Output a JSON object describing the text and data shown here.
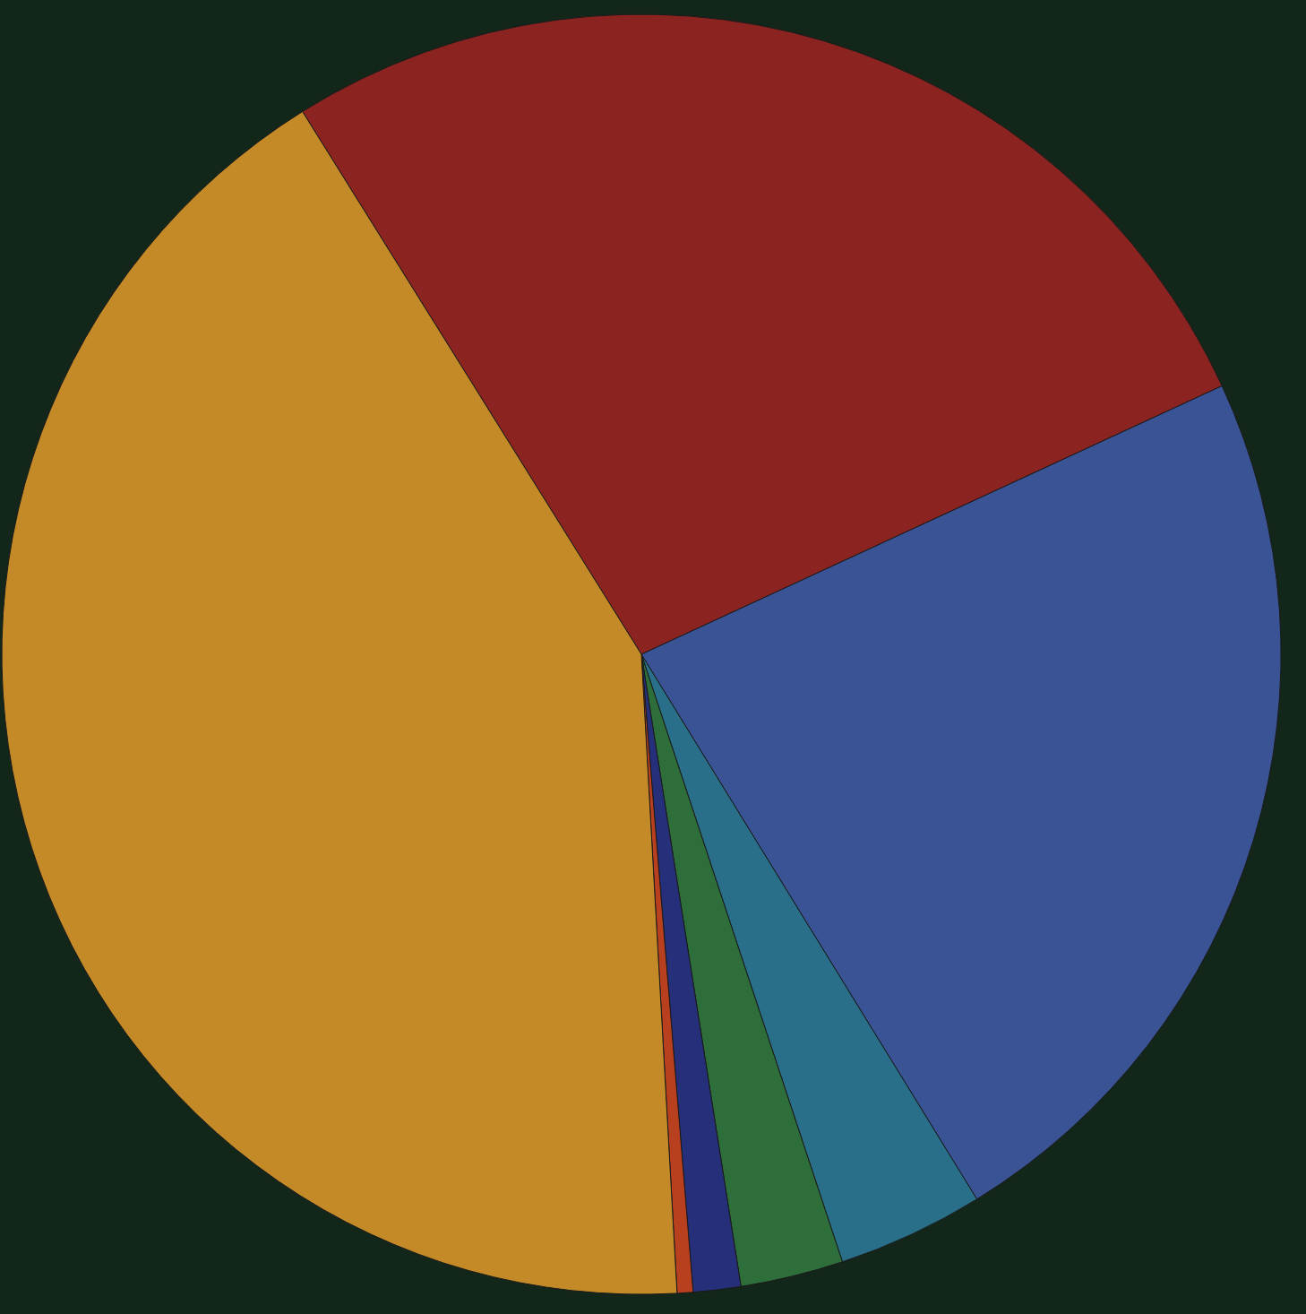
{
  "chart_data": {
    "type": "pie",
    "categories": [
      null,
      null,
      null,
      null,
      null,
      null,
      null
    ],
    "values": [
      27.0,
      23.1,
      3.7,
      2.6,
      1.2,
      0.4,
      42.0
    ],
    "colors": [
      "#8b2420",
      "#3a5394",
      "#2a6f8a",
      "#2e6e3a",
      "#26307a",
      "#b8401f",
      "#c48a28"
    ],
    "legend": false
  }
}
